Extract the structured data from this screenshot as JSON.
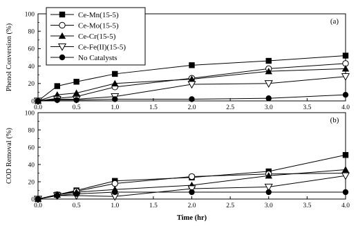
{
  "chart_data": [
    {
      "type": "line",
      "panel_label": "(a)",
      "ylabel": "Phenol Conversion (%)",
      "xlabel": "",
      "x": [
        0.0,
        0.25,
        0.5,
        1.0,
        2.0,
        3.0,
        4.0
      ],
      "xlim": [
        0.0,
        4.0
      ],
      "ylim": [
        0,
        100
      ],
      "xticks": [
        "0.0",
        "0.5",
        "1.0",
        "1.5",
        "2.0",
        "2.5",
        "3.0",
        "3.5",
        "4.0"
      ],
      "yticks": [
        "0",
        "20",
        "40",
        "60",
        "80",
        "100"
      ],
      "legend_position": "top-left",
      "series": [
        {
          "name": "Ce-Mn(15-5)",
          "marker": "square-filled",
          "values": [
            0,
            17,
            22,
            31,
            41,
            46,
            52
          ]
        },
        {
          "name": "Ce-Mo(15-5)",
          "marker": "circle-open",
          "values": [
            0,
            3,
            5,
            16,
            26,
            37,
            43
          ]
        },
        {
          "name": "Ce-Cr(15-5)",
          "marker": "triangle-up-filled",
          "values": [
            0,
            7,
            9,
            20,
            25,
            34,
            37
          ]
        },
        {
          "name": "Ce-Fe(II)(15-5)",
          "marker": "triangle-down-open",
          "values": [
            0,
            2,
            2,
            5,
            19,
            20,
            28
          ]
        },
        {
          "name": "No Catalysts",
          "marker": "circle-filled",
          "values": [
            0,
            1,
            1,
            2,
            2,
            3,
            7
          ]
        }
      ]
    },
    {
      "type": "line",
      "panel_label": "(b)",
      "ylabel": "COD Removal (%)",
      "xlabel": "Time (hr)",
      "x": [
        0.0,
        0.25,
        0.5,
        1.0,
        2.0,
        3.0,
        4.0
      ],
      "xlim": [
        0.0,
        4.0
      ],
      "ylim": [
        0,
        100
      ],
      "xticks": [
        "0.0",
        "0.5",
        "1.0",
        "1.5",
        "2.0",
        "2.5",
        "3.0",
        "3.5",
        "4.0"
      ],
      "yticks": [
        "0",
        "20",
        "40",
        "60",
        "80",
        "100"
      ],
      "series": [
        {
          "name": "Ce-Mn(15-5)",
          "marker": "square-filled",
          "values": [
            0,
            5,
            10,
            21,
            25,
            32,
            51
          ]
        },
        {
          "name": "Ce-Mo(15-5)",
          "marker": "circle-open",
          "values": [
            0,
            5,
            9,
            18,
            26,
            29,
            30
          ]
        },
        {
          "name": "Ce-Cr(15-5)",
          "marker": "triangle-up-filled",
          "values": [
            0,
            5,
            8,
            11,
            16,
            27,
            34
          ]
        },
        {
          "name": "Ce-Fe(II)(15-5)",
          "marker": "triangle-down-open",
          "values": [
            0,
            4,
            4,
            3,
            12,
            14,
            27
          ]
        },
        {
          "name": "No Catalysts",
          "marker": "circle-filled",
          "values": [
            0,
            4,
            6,
            8,
            8,
            8,
            8
          ]
        }
      ]
    }
  ]
}
